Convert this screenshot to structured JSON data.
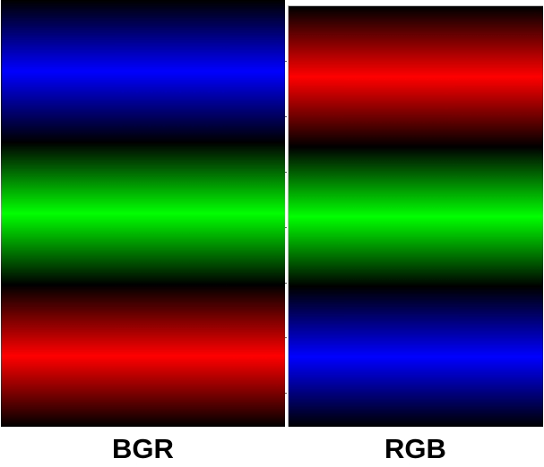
{
  "panels": [
    {
      "caption": "BGR",
      "bands": [
        {
          "channel": "blue",
          "color": "#0000ff"
        },
        {
          "channel": "green",
          "color": "#00ff00"
        },
        {
          "channel": "red",
          "color": "#ff0000"
        }
      ]
    },
    {
      "caption": "RGB",
      "bands": [
        {
          "channel": "red",
          "color": "#ff0000"
        },
        {
          "channel": "green",
          "color": "#00ff00"
        },
        {
          "channel": "blue",
          "color": "#0000ff"
        }
      ]
    }
  ]
}
